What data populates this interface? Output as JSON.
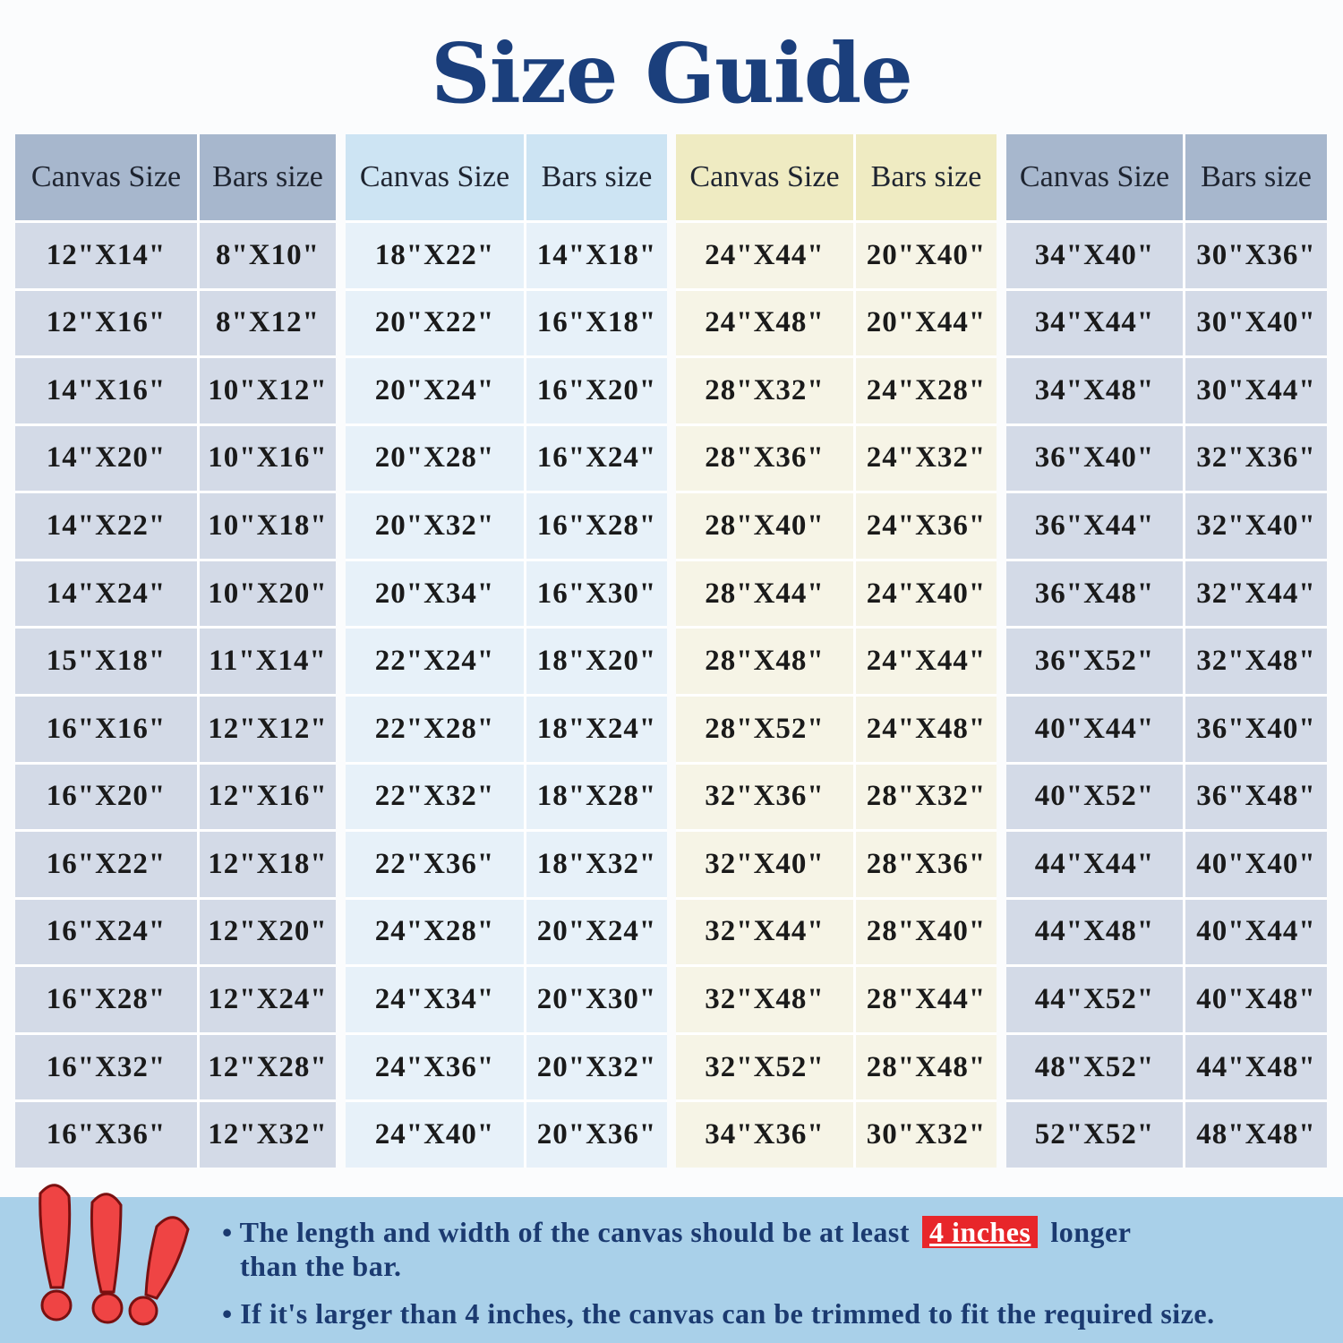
{
  "title": "Size Guide",
  "headers": {
    "canvas": "Canvas Size",
    "bars": "Bars size"
  },
  "tables": [
    {
      "rows": [
        [
          "12\"X14\"",
          "8\"X10\""
        ],
        [
          "12\"X16\"",
          "8\"X12\""
        ],
        [
          "14\"X16\"",
          "10\"X12\""
        ],
        [
          "14\"X20\"",
          "10\"X16\""
        ],
        [
          "14\"X22\"",
          "10\"X18\""
        ],
        [
          "14\"X24\"",
          "10\"X20\""
        ],
        [
          "15\"X18\"",
          "11\"X14\""
        ],
        [
          "16\"X16\"",
          "12\"X12\""
        ],
        [
          "16\"X20\"",
          "12\"X16\""
        ],
        [
          "16\"X22\"",
          "12\"X18\""
        ],
        [
          "16\"X24\"",
          "12\"X20\""
        ],
        [
          "16\"X28\"",
          "12\"X24\""
        ],
        [
          "16\"X32\"",
          "12\"X28\""
        ],
        [
          "16\"X36\"",
          "12\"X32\""
        ]
      ]
    },
    {
      "rows": [
        [
          "18\"X22\"",
          "14\"X18\""
        ],
        [
          "20\"X22\"",
          "16\"X18\""
        ],
        [
          "20\"X24\"",
          "16\"X20\""
        ],
        [
          "20\"X28\"",
          "16\"X24\""
        ],
        [
          "20\"X32\"",
          "16\"X28\""
        ],
        [
          "20\"X34\"",
          "16\"X30\""
        ],
        [
          "22\"X24\"",
          "18\"X20\""
        ],
        [
          "22\"X28\"",
          "18\"X24\""
        ],
        [
          "22\"X32\"",
          "18\"X28\""
        ],
        [
          "22\"X36\"",
          "18\"X32\""
        ],
        [
          "24\"X28\"",
          "20\"X24\""
        ],
        [
          "24\"X34\"",
          "20\"X30\""
        ],
        [
          "24\"X36\"",
          "20\"X32\""
        ],
        [
          "24\"X40\"",
          "20\"X36\""
        ]
      ]
    },
    {
      "rows": [
        [
          "24\"X44\"",
          "20\"X40\""
        ],
        [
          "24\"X48\"",
          "20\"X44\""
        ],
        [
          "28\"X32\"",
          "24\"X28\""
        ],
        [
          "28\"X36\"",
          "24\"X32\""
        ],
        [
          "28\"X40\"",
          "24\"X36\""
        ],
        [
          "28\"X44\"",
          "24\"X40\""
        ],
        [
          "28\"X48\"",
          "24\"X44\""
        ],
        [
          "28\"X52\"",
          "24\"X48\""
        ],
        [
          "32\"X36\"",
          "28\"X32\""
        ],
        [
          "32\"X40\"",
          "28\"X36\""
        ],
        [
          "32\"X44\"",
          "28\"X40\""
        ],
        [
          "32\"X48\"",
          "28\"X44\""
        ],
        [
          "32\"X52\"",
          "28\"X48\""
        ],
        [
          "34\"X36\"",
          "30\"X32\""
        ]
      ]
    },
    {
      "rows": [
        [
          "34\"X40\"",
          "30\"X36\""
        ],
        [
          "34\"X44\"",
          "30\"X40\""
        ],
        [
          "34\"X48\"",
          "30\"X44\""
        ],
        [
          "36\"X40\"",
          "32\"X36\""
        ],
        [
          "36\"X44\"",
          "32\"X40\""
        ],
        [
          "36\"X48\"",
          "32\"X44\""
        ],
        [
          "36\"X52\"",
          "32\"X48\""
        ],
        [
          "40\"X44\"",
          "36\"X40\""
        ],
        [
          "40\"X52\"",
          "36\"X48\""
        ],
        [
          "44\"X44\"",
          "40\"X40\""
        ],
        [
          "44\"X48\"",
          "40\"X44\""
        ],
        [
          "44\"X52\"",
          "40\"X48\""
        ],
        [
          "48\"X52\"",
          "44\"X48\""
        ],
        [
          "52\"X52\"",
          "48\"X48\""
        ]
      ]
    }
  ],
  "notes": {
    "note1_before": "• The length and width of the canvas should be at least",
    "note1_highlight": "4 inches",
    "note1_after": "longer",
    "note1_line2": "than the bar.",
    "note2": "• If it's larger than 4 inches, the canvas can be trimmed to fit the required size."
  },
  "icon": "exclamation-marks-icon",
  "colors": {
    "title": "#1b3f7c",
    "highlight": "#e8262a",
    "band": "#a9d0e9"
  }
}
